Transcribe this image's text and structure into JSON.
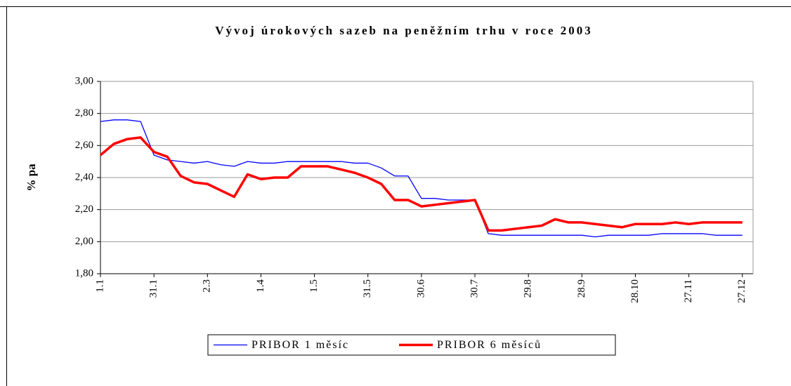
{
  "chart_data": {
    "type": "line",
    "title": "Vývoj úrokových sazeb na peněžním trhu v roce 2003",
    "y_label": "% pa",
    "categories": [
      "1.1",
      null,
      null,
      null,
      "31.1",
      null,
      null,
      null,
      "2.3",
      null,
      null,
      null,
      "1.4",
      null,
      null,
      null,
      "1.5",
      null,
      null,
      null,
      "31.5",
      null,
      null,
      null,
      "30.6",
      null,
      null,
      null,
      "30.7",
      null,
      null,
      null,
      "29.8",
      null,
      null,
      null,
      "28.9",
      null,
      null,
      null,
      "28.10",
      null,
      null,
      null,
      "27.11",
      null,
      null,
      null,
      "27.12"
    ],
    "series": [
      {
        "name": "PRIBOR 1 měsíc",
        "color": "#0000ff",
        "values": [
          2.75,
          2.76,
          2.76,
          2.75,
          2.54,
          2.51,
          2.5,
          2.49,
          2.5,
          2.48,
          2.47,
          2.5,
          2.49,
          2.49,
          2.5,
          2.5,
          2.5,
          2.5,
          2.5,
          2.49,
          2.49,
          2.46,
          2.41,
          2.41,
          2.27,
          2.27,
          2.26,
          2.26,
          2.26,
          2.05,
          2.04,
          2.04,
          2.04,
          2.04,
          2.04,
          2.04,
          2.04,
          2.03,
          2.04,
          2.04,
          2.04,
          2.04,
          2.05,
          2.05,
          2.05,
          2.05,
          2.04,
          2.04,
          2.04
        ]
      },
      {
        "name": "PRIBOR 6 měsíců",
        "color": "#ff0000",
        "values": [
          2.54,
          2.61,
          2.64,
          2.65,
          2.56,
          2.53,
          2.41,
          2.37,
          2.36,
          2.32,
          2.28,
          2.42,
          2.39,
          2.4,
          2.4,
          2.47,
          2.47,
          2.47,
          2.45,
          2.43,
          2.4,
          2.36,
          2.26,
          2.26,
          2.22,
          2.23,
          2.24,
          2.25,
          2.26,
          2.07,
          2.07,
          2.08,
          2.09,
          2.1,
          2.14,
          2.12,
          2.12,
          2.11,
          2.1,
          2.09,
          2.11,
          2.11,
          2.11,
          2.12,
          2.11,
          2.12,
          2.12,
          2.12,
          2.12
        ]
      }
    ],
    "ylim": [
      1.8,
      3.0
    ],
    "yticks": [
      {
        "value": 1.8,
        "label": "1,80"
      },
      {
        "value": 2.0,
        "label": "2,00"
      },
      {
        "value": 2.2,
        "label": "2,20"
      },
      {
        "value": 2.4,
        "label": "2,40"
      },
      {
        "value": 2.6,
        "label": "2,60"
      },
      {
        "value": 2.8,
        "label": "2,80"
      },
      {
        "value": 3.0,
        "label": "3,00"
      }
    ],
    "grid": true,
    "legend": "bottom"
  }
}
